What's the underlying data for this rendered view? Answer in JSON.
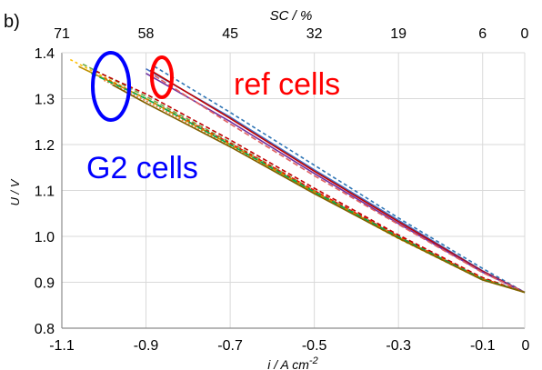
{
  "chart_data": {
    "type": "line",
    "panel_label": "b)",
    "xlabel": "i / A cm",
    "xlabel_superscript": "-2",
    "ylabel": "U / V",
    "top_axis_label": "SC / %",
    "xlim": [
      -1.1,
      0.0
    ],
    "ylim": [
      0.8,
      1.4
    ],
    "x_ticks": [
      "-1.1",
      "-0.9",
      "-0.7",
      "-0.5",
      "-0.3",
      "-0.1",
      "0"
    ],
    "x_tick_values": [
      -1.1,
      -0.9,
      -0.7,
      -0.5,
      -0.3,
      -0.1,
      0.0
    ],
    "y_ticks": [
      "0.8",
      "0.9",
      "1.0",
      "1.1",
      "1.2",
      "1.3",
      "1.4"
    ],
    "y_tick_values": [
      0.8,
      0.9,
      1.0,
      1.1,
      1.2,
      1.3,
      1.4
    ],
    "top_ticks": [
      "71",
      "58",
      "45",
      "32",
      "19",
      "6",
      "0"
    ],
    "top_tick_values": [
      -1.1,
      -0.9,
      -0.7,
      -0.5,
      -0.3,
      -0.1,
      0.0
    ],
    "grid": true,
    "series": [
      {
        "group": "ref",
        "color": "#2e75b6",
        "dash": "4,3",
        "x": [
          -0.88,
          -0.7,
          -0.5,
          -0.3,
          -0.1,
          0.0
        ],
        "y": [
          1.37,
          1.27,
          1.155,
          1.04,
          0.93,
          0.878
        ]
      },
      {
        "group": "ref",
        "color": "#4472c4",
        "dash": "",
        "x": [
          -0.9,
          -0.7,
          -0.5,
          -0.3,
          -0.1,
          0.0
        ],
        "y": [
          1.365,
          1.26,
          1.145,
          1.035,
          0.925,
          0.878
        ]
      },
      {
        "group": "ref",
        "color": "#c00000",
        "dash": "",
        "x": [
          -0.89,
          -0.7,
          -0.5,
          -0.3,
          -0.1,
          0.0
        ],
        "y": [
          1.362,
          1.257,
          1.142,
          1.032,
          0.924,
          0.878
        ]
      },
      {
        "group": "ref",
        "color": "#7030a0",
        "dash": "",
        "x": [
          -0.9,
          -0.7,
          -0.5,
          -0.3,
          -0.1,
          0.0
        ],
        "y": [
          1.355,
          1.25,
          1.137,
          1.028,
          0.922,
          0.878
        ]
      },
      {
        "group": "ref",
        "color": "#e06060",
        "dash": "6,3",
        "x": [
          -0.88,
          -0.7,
          -0.5,
          -0.3,
          -0.1,
          0.0
        ],
        "y": [
          1.35,
          1.245,
          1.132,
          1.026,
          0.921,
          0.878
        ]
      },
      {
        "group": "G2",
        "color": "#ffc000",
        "dash": "3,3",
        "x": [
          -1.08,
          -0.9,
          -0.7,
          -0.5,
          -0.3,
          -0.1,
          0.0
        ],
        "y": [
          1.385,
          1.3,
          1.2,
          1.095,
          0.995,
          0.905,
          0.878
        ]
      },
      {
        "group": "G2",
        "color": "#70ad47",
        "dash": "5,3",
        "x": [
          -1.05,
          -0.9,
          -0.7,
          -0.5,
          -0.3,
          -0.1,
          0.0
        ],
        "y": [
          1.375,
          1.305,
          1.205,
          1.1,
          1.0,
          0.908,
          0.878
        ]
      },
      {
        "group": "G2",
        "color": "#c00000",
        "dash": "5,3",
        "x": [
          -1.02,
          -0.9,
          -0.7,
          -0.5,
          -0.3,
          -0.1,
          0.0
        ],
        "y": [
          1.36,
          1.31,
          1.21,
          1.105,
          1.003,
          0.91,
          0.878
        ]
      },
      {
        "group": "G2",
        "color": "#ff0000",
        "dash": "4,2",
        "x": [
          -1.0,
          -0.9,
          -0.7,
          -0.5,
          -0.3,
          -0.1,
          0.0
        ],
        "y": [
          1.345,
          1.3,
          1.203,
          1.1,
          1.0,
          0.908,
          0.878
        ]
      },
      {
        "group": "G2",
        "color": "#ed7d31",
        "dash": "2,2",
        "x": [
          -1.0,
          -0.9,
          -0.7,
          -0.5,
          -0.3,
          -0.1,
          0.0
        ],
        "y": [
          1.34,
          1.295,
          1.198,
          1.095,
          0.997,
          0.906,
          0.878
        ]
      },
      {
        "group": "G2",
        "color": "#bf9000",
        "dash": "",
        "x": [
          -1.06,
          -0.9,
          -0.7,
          -0.5,
          -0.3,
          -0.1,
          0.0
        ],
        "y": [
          1.37,
          1.3,
          1.2,
          1.097,
          0.998,
          0.907,
          0.878
        ]
      },
      {
        "group": "G2",
        "color": "#00b050",
        "dash": "6,4",
        "x": [
          -1.03,
          -0.9,
          -0.7,
          -0.5,
          -0.3,
          -0.1,
          0.0
        ],
        "y": [
          1.355,
          1.3,
          1.2,
          1.097,
          0.999,
          0.907,
          0.878
        ]
      },
      {
        "group": "G2",
        "color": "#7f6000",
        "dash": "",
        "x": [
          -0.98,
          -0.9,
          -0.7,
          -0.5,
          -0.3,
          -0.1,
          0.0
        ],
        "y": [
          1.33,
          1.29,
          1.195,
          1.093,
          0.996,
          0.905,
          0.878
        ]
      }
    ],
    "annotations": [
      {
        "text": "ref cells",
        "color": "#ff0000"
      },
      {
        "text": "G2 cells",
        "color": "#0000ff"
      }
    ]
  }
}
